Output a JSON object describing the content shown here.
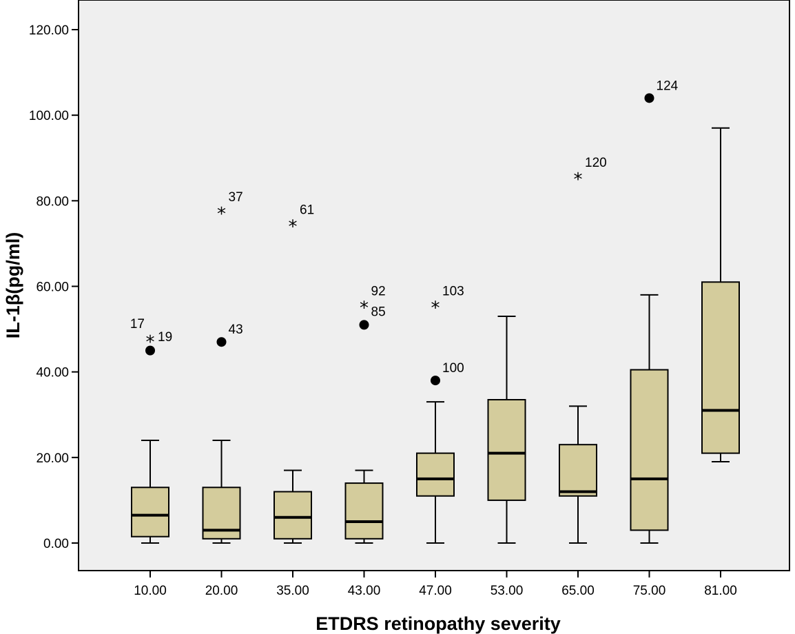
{
  "chart_data": {
    "type": "boxplot",
    "xlabel": "ETDRS retinopathy severity",
    "ylabel": "IL-1β(pg/ml)",
    "ylim": [
      0,
      120
    ],
    "y_ticks": [
      "0.00",
      "20.00",
      "40.00",
      "60.00",
      "80.00",
      "100.00",
      "120.00"
    ],
    "y_tick_values": [
      0,
      20,
      40,
      60,
      80,
      100,
      120
    ],
    "grid": false,
    "box_color": "#d4cc9c",
    "plot_bg": "#efefef",
    "categories": [
      "10.00",
      "20.00",
      "35.00",
      "43.00",
      "47.00",
      "53.00",
      "65.00",
      "75.00",
      "81.00"
    ],
    "boxes": [
      {
        "min": 0,
        "q1": 1.5,
        "median": 6.5,
        "q3": 13,
        "max": 24
      },
      {
        "min": 0,
        "q1": 1,
        "median": 3,
        "q3": 13,
        "max": 24
      },
      {
        "min": 0,
        "q1": 1,
        "median": 6,
        "q3": 12,
        "max": 17
      },
      {
        "min": 0,
        "q1": 1,
        "median": 5,
        "q3": 14,
        "max": 17
      },
      {
        "min": 0,
        "q1": 11,
        "median": 15,
        "q3": 21,
        "max": 33
      },
      {
        "min": 0,
        "q1": 10,
        "median": 21,
        "q3": 33.5,
        "max": 53
      },
      {
        "min": 0,
        "q1": 11,
        "median": 12,
        "q3": 23,
        "max": 32
      },
      {
        "min": 0,
        "q1": 3,
        "median": 15,
        "q3": 40.5,
        "max": 58
      },
      {
        "min": 19,
        "q1": 21,
        "median": 31,
        "q3": 61,
        "max": 97
      }
    ],
    "outliers": [
      {
        "category": 0,
        "value": 45,
        "kind": "circle",
        "label": ""
      },
      {
        "category": 0,
        "value": 48,
        "kind": "star",
        "label": "17",
        "label_pos": "upper-left"
      },
      {
        "category": 0,
        "value": 48,
        "kind": "none",
        "label": "19",
        "label_pos": "right"
      },
      {
        "category": 1,
        "value": 47,
        "kind": "circle",
        "label": "43",
        "label_pos": "upper-right"
      },
      {
        "category": 1,
        "value": 78,
        "kind": "star",
        "label": "37",
        "label_pos": "upper-right"
      },
      {
        "category": 2,
        "value": 75,
        "kind": "star",
        "label": "61",
        "label_pos": "upper-right"
      },
      {
        "category": 3,
        "value": 51,
        "kind": "circle",
        "label": ""
      },
      {
        "category": 3,
        "value": 56,
        "kind": "star",
        "label": "92",
        "label_pos": "upper-right"
      },
      {
        "category": 3,
        "value": 56,
        "kind": "none",
        "label": "85",
        "label_pos": "lower-right"
      },
      {
        "category": 4,
        "value": 56,
        "kind": "star",
        "label": "103",
        "label_pos": "upper-right"
      },
      {
        "category": 4,
        "value": 38,
        "kind": "circle",
        "label": "100",
        "label_pos": "upper-right"
      },
      {
        "category": 6,
        "value": 86,
        "kind": "star",
        "label": "120",
        "label_pos": "upper-right"
      },
      {
        "category": 7,
        "value": 104,
        "kind": "circle",
        "label": "124",
        "label_pos": "upper-right"
      }
    ]
  }
}
